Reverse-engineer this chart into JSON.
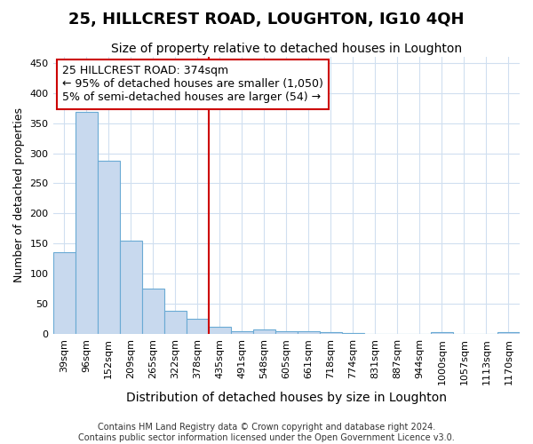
{
  "title": "25, HILLCREST ROAD, LOUGHTON, IG10 4QH",
  "subtitle": "Size of property relative to detached houses in Loughton",
  "xlabel": "Distribution of detached houses by size in Loughton",
  "ylabel": "Number of detached properties",
  "bar_labels": [
    "39sqm",
    "96sqm",
    "152sqm",
    "209sqm",
    "265sqm",
    "322sqm",
    "378sqm",
    "435sqm",
    "491sqm",
    "548sqm",
    "605sqm",
    "661sqm",
    "718sqm",
    "774sqm",
    "831sqm",
    "887sqm",
    "944sqm",
    "1000sqm",
    "1057sqm",
    "1113sqm",
    "1170sqm"
  ],
  "bar_values": [
    136,
    368,
    287,
    155,
    75,
    38,
    25,
    11,
    5,
    7,
    5,
    4,
    3,
    2,
    0,
    0,
    0,
    3,
    0,
    0,
    3
  ],
  "bar_color": "#c8d9ee",
  "bar_edge_color": "#6aaad4",
  "vline_x": 6.5,
  "vline_color": "#cc0000",
  "annotation_text": "25 HILLCREST ROAD: 374sqm\n← 95% of detached houses are smaller (1,050)\n5% of semi-detached houses are larger (54) →",
  "annotation_box_color": "white",
  "annotation_box_edge": "#cc0000",
  "ylim": [
    0,
    460
  ],
  "yticks": [
    0,
    50,
    100,
    150,
    200,
    250,
    300,
    350,
    400,
    450
  ],
  "footer1": "Contains HM Land Registry data © Crown copyright and database right 2024.",
  "footer2": "Contains public sector information licensed under the Open Government Licence v3.0.",
  "background_color": "#ffffff",
  "grid_color": "#d0dff0",
  "title_fontsize": 13,
  "subtitle_fontsize": 10,
  "xlabel_fontsize": 10,
  "ylabel_fontsize": 9,
  "tick_fontsize": 8,
  "annotation_fontsize": 9,
  "footer_fontsize": 7
}
